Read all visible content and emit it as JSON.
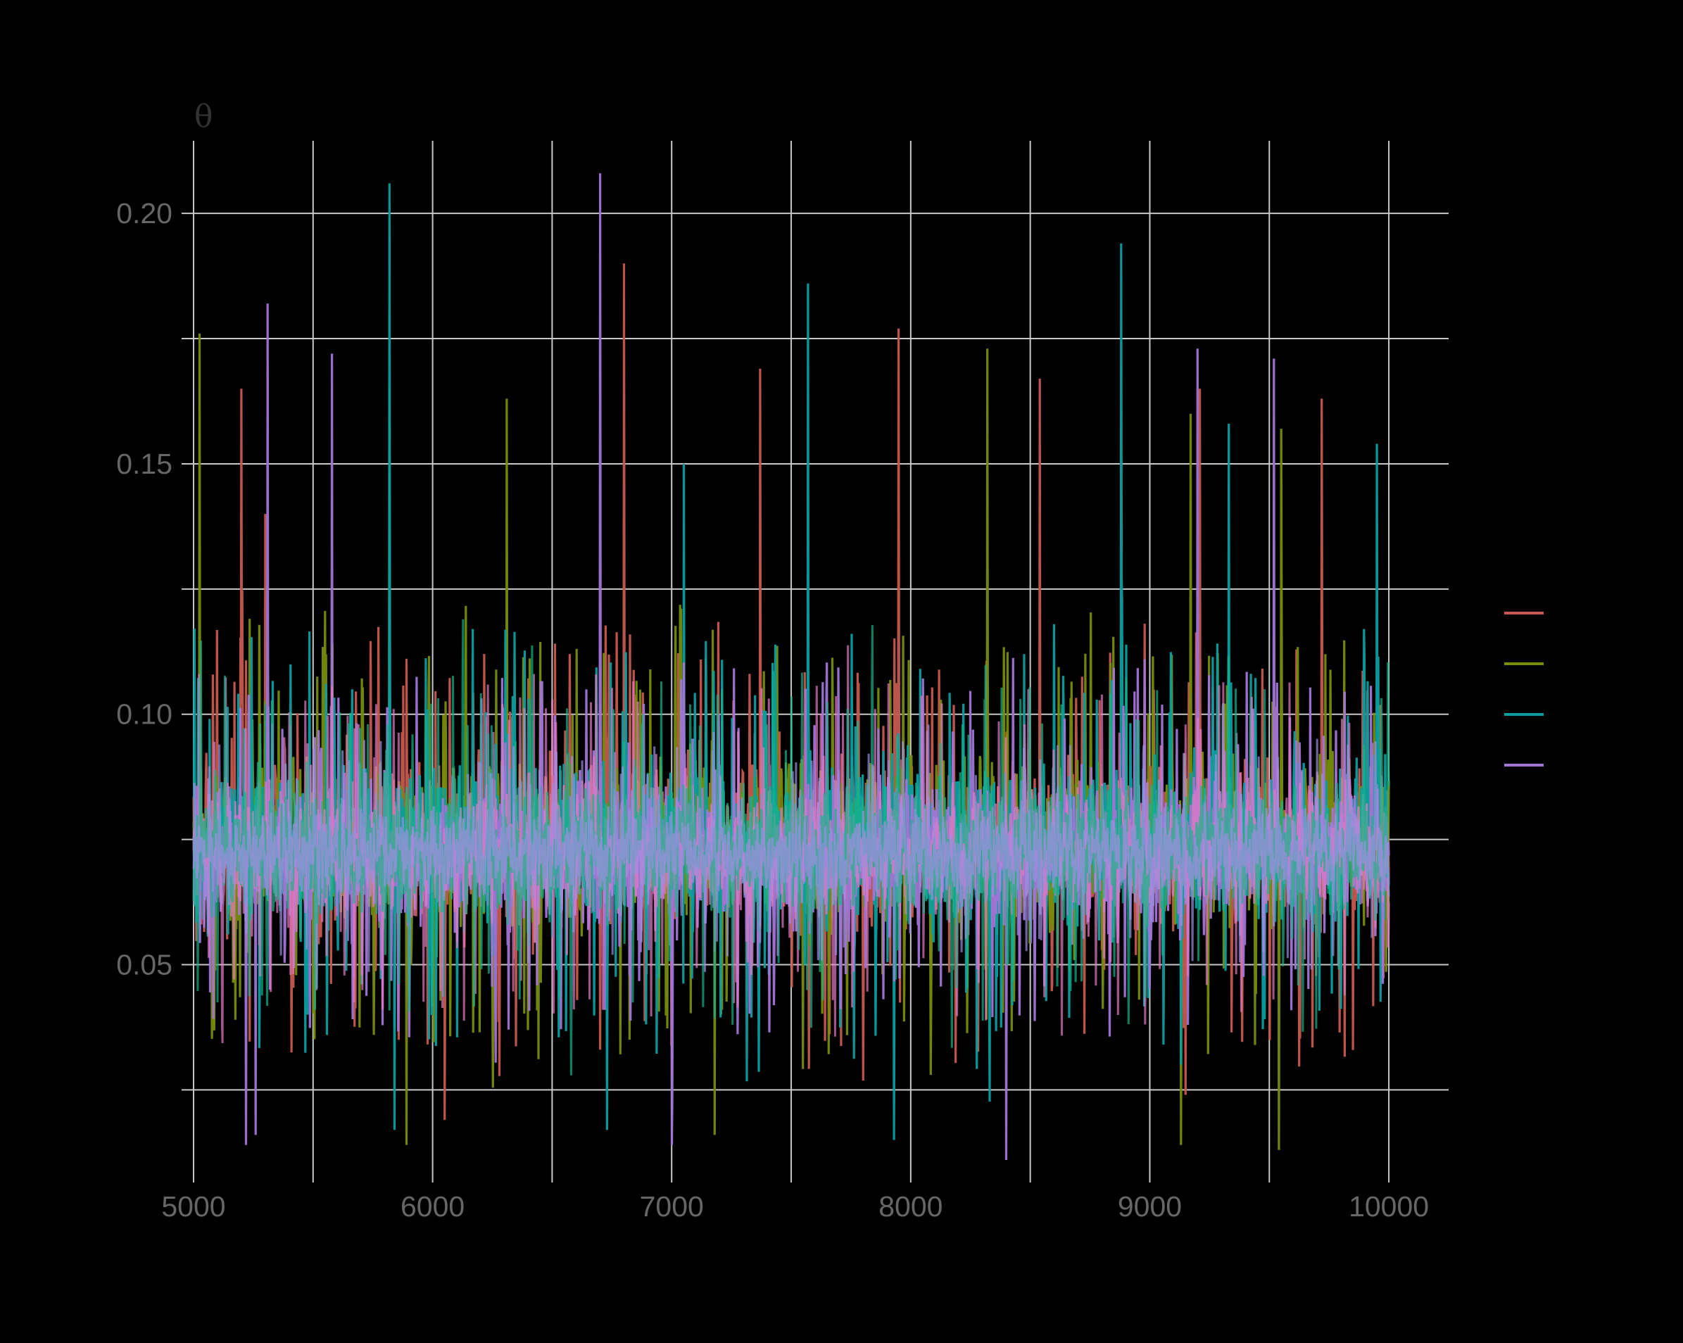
{
  "chart_data": {
    "type": "line",
    "title": "",
    "xlabel": "",
    "ylabel": "θ",
    "xlim": [
      4950,
      10250
    ],
    "ylim": [
      0.0065,
      0.2145
    ],
    "x_ticks": [
      5000,
      6000,
      7000,
      8000,
      9000,
      10000
    ],
    "x_tick_labels": [
      "5000",
      "6000",
      "7000",
      "8000",
      "9000",
      "10000"
    ],
    "y_ticks": [
      0.05,
      0.1,
      0.15,
      0.2
    ],
    "y_tick_labels": [
      "0.05",
      "0.10",
      "0.15",
      "0.20"
    ],
    "grid": true,
    "legend_position": "right",
    "x_range": [
      5000,
      10000
    ],
    "series": [
      {
        "color": "#c5584f",
        "center": 0.074,
        "spread": 0.0205,
        "spikes": [
          [
            5200,
            0.165
          ],
          [
            5300,
            0.14
          ],
          [
            6800,
            0.19
          ],
          [
            7370,
            0.169
          ],
          [
            7950,
            0.177
          ],
          [
            8540,
            0.167
          ],
          [
            9210,
            0.165
          ],
          [
            9720,
            0.163
          ],
          [
            6050,
            0.019
          ],
          [
            9150,
            0.024
          ]
        ]
      },
      {
        "color": "#768c0a",
        "center": 0.074,
        "spread": 0.0205,
        "spikes": [
          [
            5025,
            0.176
          ],
          [
            5820,
            0.165
          ],
          [
            6310,
            0.163
          ],
          [
            8320,
            0.173
          ],
          [
            9170,
            0.16
          ],
          [
            9550,
            0.157
          ],
          [
            5890,
            0.014
          ],
          [
            9130,
            0.014
          ],
          [
            9540,
            0.013
          ],
          [
            7180,
            0.016
          ]
        ]
      },
      {
        "color": "#0a9ea0",
        "center": 0.074,
        "spread": 0.0205,
        "spikes": [
          [
            5820,
            0.206
          ],
          [
            7570,
            0.186
          ],
          [
            8880,
            0.194
          ],
          [
            7050,
            0.15
          ],
          [
            9950,
            0.154
          ],
          [
            9330,
            0.158
          ],
          [
            7930,
            0.015
          ],
          [
            5840,
            0.017
          ],
          [
            6730,
            0.017
          ]
        ]
      },
      {
        "color": "#a274d6",
        "center": 0.072,
        "spread": 0.0175,
        "spikes": [
          [
            6700,
            0.208
          ],
          [
            5310,
            0.182
          ],
          [
            5580,
            0.172
          ],
          [
            9200,
            0.173
          ],
          [
            9520,
            0.171
          ],
          [
            8400,
            0.011
          ],
          [
            7000,
            0.014
          ],
          [
            5220,
            0.014
          ],
          [
            5260,
            0.016
          ]
        ]
      }
    ],
    "overlay_series": [
      {
        "color": "#e27ac3",
        "center": 0.073,
        "spread": 0.017
      },
      {
        "color": "#16b58c",
        "center": 0.073,
        "spread": 0.017
      },
      {
        "color": "#9b8ee0",
        "center": 0.072,
        "spread": 0.011
      }
    ]
  }
}
